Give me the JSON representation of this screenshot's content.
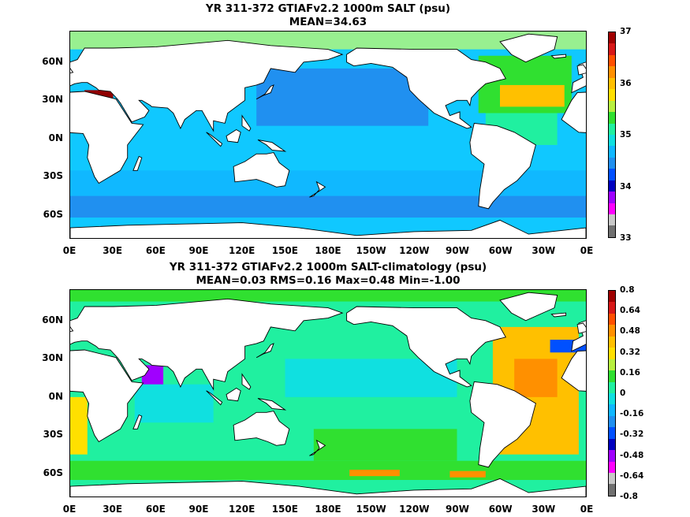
{
  "panels": [
    {
      "title_line1": "YR 311-372 GTIAFv2.2 1000m SALT (psu)",
      "title_line2": "MEAN=34.63",
      "lat_ticks": [
        "60N",
        "30N",
        "0N",
        "30S",
        "60S"
      ],
      "lon_ticks": [
        "0E",
        "30E",
        "60E",
        "90E",
        "120E",
        "150E",
        "180E",
        "150W",
        "120W",
        "90W",
        "60W",
        "30W",
        "0E"
      ],
      "colorbar_labels": [
        "37",
        "36",
        "35",
        "34",
        "33"
      ],
      "colorbar_colors": [
        "#a00000",
        "#d81818",
        "#ff5000",
        "#ff9000",
        "#ffc000",
        "#ffe000",
        "#b8f040",
        "#30e030",
        "#20f0a0",
        "#10e0e0",
        "#10b8ff",
        "#2090f0",
        "#0050ff",
        "#0000c0",
        "#a000ff",
        "#ff00ff",
        "#c8c8c8",
        "#707070"
      ],
      "field": {
        "background": "#10c8ff",
        "regions": [
          {
            "color": "#98f090",
            "lon": [
              0,
              360
            ],
            "lat": [
              70,
              90
            ]
          },
          {
            "color": "#2090f0",
            "lon": [
              130,
              250
            ],
            "lat": [
              10,
              55
            ]
          },
          {
            "color": "#10b8ff",
            "lon": [
              0,
              360
            ],
            "lat": [
              -55,
              -25
            ]
          },
          {
            "color": "#2090f0",
            "lon": [
              0,
              360
            ],
            "lat": [
              -62,
              -45
            ]
          },
          {
            "color": "#10c8ff",
            "lon": [
              0,
              360
            ],
            "lat": [
              -90,
              -62
            ]
          },
          {
            "color": "#30e030",
            "lon": [
              285,
              350
            ],
            "lat": [
              20,
              65
            ]
          },
          {
            "color": "#ffc000",
            "lon": [
              300,
              345
            ],
            "lat": [
              25,
              42
            ]
          },
          {
            "color": "#20f0a0",
            "lon": [
              290,
              340
            ],
            "lat": [
              -5,
              20
            ]
          },
          {
            "color": "#900000",
            "lon": [
              10,
              30
            ],
            "lat": [
              32,
              38
            ]
          }
        ]
      }
    },
    {
      "title_line1": "YR 311-372 GTIAFv2.2 1000m SALT-climatology (psu)",
      "title_line2": "MEAN=0.03   RMS=0.16   Max=0.48   Min=-1.00",
      "lat_ticks": [
        "60N",
        "30N",
        "0N",
        "30S",
        "60S"
      ],
      "lon_ticks": [
        "0E",
        "30E",
        "60E",
        "90E",
        "120E",
        "150E",
        "180E",
        "150W",
        "120W",
        "90W",
        "60W",
        "30W",
        "0E"
      ],
      "colorbar_labels": [
        "0.8",
        "0.64",
        "0.48",
        "0.32",
        "0.16",
        "0",
        "-0.16",
        "-0.32",
        "-0.48",
        "-0.64",
        "-0.8"
      ],
      "colorbar_colors": [
        "#a00000",
        "#d81818",
        "#ff5000",
        "#ff9000",
        "#ffc000",
        "#ffe000",
        "#b8f040",
        "#30e030",
        "#20f0a0",
        "#10e0e0",
        "#10b8ff",
        "#2090f0",
        "#0050ff",
        "#0000c0",
        "#a000ff",
        "#ff00ff",
        "#c8c8c8",
        "#707070"
      ],
      "field": {
        "background": "#20f0a0",
        "regions": [
          {
            "color": "#30e030",
            "lon": [
              0,
              360
            ],
            "lat": [
              75,
              90
            ]
          },
          {
            "color": "#10e0e0",
            "lon": [
              150,
              270
            ],
            "lat": [
              0,
              30
            ]
          },
          {
            "color": "#10e0e0",
            "lon": [
              45,
              100
            ],
            "lat": [
              -20,
              10
            ]
          },
          {
            "color": "#30e030",
            "lon": [
              0,
              360
            ],
            "lat": [
              -65,
              -50
            ]
          },
          {
            "color": "#30e030",
            "lon": [
              170,
              270
            ],
            "lat": [
              -50,
              -25
            ]
          },
          {
            "color": "#ffc000",
            "lon": [
              295,
              355
            ],
            "lat": [
              -45,
              55
            ]
          },
          {
            "color": "#ff9000",
            "lon": [
              310,
              340
            ],
            "lat": [
              0,
              30
            ]
          },
          {
            "color": "#ffe000",
            "lon": [
              0,
              12
            ],
            "lat": [
              -45,
              0
            ]
          },
          {
            "color": "#0050ff",
            "lon": [
              335,
              360
            ],
            "lat": [
              35,
              45
            ]
          },
          {
            "color": "#a000ff",
            "lon": [
              50,
              65
            ],
            "lat": [
              10,
              25
            ]
          },
          {
            "color": "#ff9000",
            "lon": [
              195,
              230
            ],
            "lat": [
              -62,
              -57
            ]
          },
          {
            "color": "#ff9000",
            "lon": [
              265,
              290
            ],
            "lat": [
              -63,
              -58
            ]
          }
        ]
      }
    }
  ]
}
